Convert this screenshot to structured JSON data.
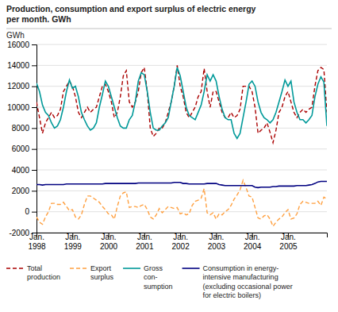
{
  "chart_data": {
    "type": "line",
    "title": "Production, consumption and export surplus of electric energy\nper month. GWh",
    "y_label": "GWh",
    "ylim": [
      -2000,
      16000
    ],
    "yticks": [
      -2000,
      0,
      2000,
      4000,
      6000,
      8000,
      10000,
      12000,
      14000,
      16000
    ],
    "grid": true,
    "legend": "bottom",
    "categories": [
      "Jan.\n1998",
      null,
      null,
      null,
      null,
      null,
      null,
      null,
      null,
      null,
      null,
      null,
      "Jan.\n1999",
      null,
      null,
      null,
      null,
      null,
      null,
      null,
      null,
      null,
      null,
      null,
      "Jan.\n2000",
      null,
      null,
      null,
      null,
      null,
      null,
      null,
      null,
      null,
      null,
      null,
      "Jan.\n2001",
      null,
      null,
      null,
      null,
      null,
      null,
      null,
      null,
      null,
      null,
      null,
      "Jan.\n2002",
      null,
      null,
      null,
      null,
      null,
      null,
      null,
      null,
      null,
      null,
      null,
      "Jan.\n2003",
      null,
      null,
      null,
      null,
      null,
      null,
      null,
      null,
      null,
      null,
      null,
      "Jan.\n2004",
      null,
      null,
      null,
      null,
      null,
      null,
      null,
      null,
      null,
      null,
      null,
      "Jan.\n2005",
      null,
      null,
      null,
      null,
      null,
      null,
      null,
      null,
      null,
      null,
      null,
      null,
      null
    ],
    "series": [
      {
        "name": "Total\nproduction",
        "color": "#aa0000",
        "line_style": "dashed",
        "values": [
          10500,
          9000,
          7500,
          8500,
          9000,
          9500,
          9000,
          9200,
          9800,
          11500,
          12000,
          12500,
          12000,
          11000,
          9500,
          9000,
          9500,
          10000,
          9500,
          9800,
          10000,
          11000,
          12000,
          12200,
          11500,
          10500,
          9000,
          9500,
          11000,
          13000,
          13500,
          10500,
          10000,
          10500,
          11500,
          13300,
          13800,
          11500,
          8000,
          7200,
          7500,
          8000,
          8000,
          8500,
          9500,
          10500,
          12000,
          14000,
          12000,
          11000,
          9500,
          9000,
          9500,
          10000,
          11000,
          11500,
          13700,
          11500,
          10000,
          11500,
          11500,
          10500,
          9500,
          9000,
          9000,
          9500,
          9000,
          9200,
          9800,
          12000,
          12000,
          12000,
          11500,
          10000,
          7500,
          7800,
          8000,
          8500,
          7600,
          6600,
          7800,
          9500,
          10000,
          11000,
          11500,
          10500,
          9500,
          9000,
          9500,
          9800,
          9500,
          9800,
          10000,
          12000,
          13500,
          13800,
          13600,
          9500
        ]
      },
      {
        "name": "Export\nsurplus",
        "color": "#ffa040",
        "line_style": "dashed",
        "values": [
          -500,
          -1000,
          -1200,
          -500,
          0,
          800,
          800,
          700,
          700,
          900,
          500,
          100,
          200,
          -500,
          -700,
          -300,
          700,
          1500,
          1500,
          1300,
          1100,
          900,
          500,
          200,
          -200,
          -300,
          -700,
          500,
          1500,
          1800,
          1900,
          400,
          500,
          500,
          400,
          600,
          700,
          200,
          -500,
          -700,
          -300,
          300,
          -100,
          200,
          500,
          400,
          300,
          400,
          -200,
          -100,
          -300,
          -200,
          600,
          1000,
          1100,
          1300,
          2200,
          -100,
          -300,
          -100,
          -700,
          -200,
          -300,
          0,
          200,
          600,
          1200,
          1600,
          2100,
          3000,
          2300,
          1500,
          1400,
          400,
          -600,
          -700,
          -400,
          -300,
          -700,
          -1400,
          -1000,
          -700,
          -500,
          -100,
          200,
          -700,
          -600,
          -200,
          700,
          1000,
          900,
          800,
          800,
          800,
          1000,
          600,
          1400,
          1200
        ]
      },
      {
        "name": "Gross\ncon-\nsumption",
        "color": "#009999",
        "line_style": "solid",
        "values": [
          12300,
          11500,
          10200,
          9500,
          9200,
          8500,
          8000,
          8200,
          8800,
          10000,
          11500,
          12600,
          11800,
          12000,
          11000,
          9500,
          8800,
          8200,
          7800,
          8000,
          8500,
          10000,
          11200,
          12500,
          12000,
          11000,
          10000,
          9000,
          8200,
          8000,
          8000,
          8800,
          9200,
          10500,
          12500,
          13300,
          13100,
          11500,
          9500,
          8000,
          7800,
          7800,
          8200,
          8500,
          9000,
          10500,
          12000,
          13800,
          13000,
          11500,
          10000,
          9200,
          9000,
          8800,
          9500,
          10200,
          11500,
          13100,
          12500,
          13100,
          12500,
          11000,
          9800,
          9000,
          8800,
          8800,
          7500,
          7000,
          7500,
          9000,
          10500,
          12200,
          12500,
          12000,
          10500,
          9500,
          9000,
          8800,
          8500,
          8800,
          9500,
          10500,
          11500,
          12600,
          12000,
          12500,
          10500,
          9500,
          8800,
          8800,
          8500,
          8800,
          9200,
          11000,
          12200,
          12900,
          12400,
          8200
        ]
      },
      {
        "name": "Consumption in energy-\nintensive manufacturing\n(excluding occasional power\nfor electric boilers)",
        "color": "#000080",
        "line_style": "solid",
        "values": [
          2600,
          2600,
          2550,
          2600,
          2600,
          2600,
          2600,
          2600,
          2600,
          2600,
          2650,
          2650,
          2650,
          2650,
          2650,
          2650,
          2650,
          2650,
          2650,
          2650,
          2650,
          2650,
          2650,
          2700,
          2700,
          2700,
          2700,
          2700,
          2700,
          2700,
          2700,
          2700,
          2700,
          2700,
          2750,
          2750,
          2750,
          2750,
          2750,
          2750,
          2750,
          2750,
          2750,
          2750,
          2750,
          2750,
          2800,
          2800,
          2800,
          2700,
          2700,
          2650,
          2650,
          2650,
          2650,
          2650,
          2650,
          2700,
          2700,
          2700,
          2700,
          2600,
          2550,
          2500,
          2500,
          2500,
          2500,
          2500,
          2500,
          2500,
          2500,
          2500,
          2500,
          2350,
          2300,
          2350,
          2350,
          2350,
          2350,
          2400,
          2400,
          2450,
          2450,
          2450,
          2450,
          2450,
          2450,
          2500,
          2500,
          2500,
          2500,
          2550,
          2600,
          2700,
          2850,
          2900,
          2900,
          2900
        ]
      }
    ]
  }
}
